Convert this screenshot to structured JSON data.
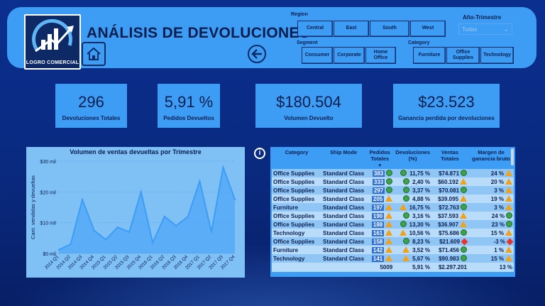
{
  "header": {
    "title": "ANÁLISIS DE DEVOLUCIONES",
    "logo_text": "LOGRO COMERCIAL"
  },
  "slicers": {
    "region": {
      "label": "Region",
      "options": [
        "Central",
        "East",
        "South",
        "West"
      ]
    },
    "segment": {
      "label": "Segment",
      "options": [
        "Consumer",
        "Corporate",
        "Home Office"
      ]
    },
    "category": {
      "label": "Category",
      "options": [
        "Furniture",
        "Office Supplies",
        "Technology"
      ]
    },
    "quarter": {
      "label": "Año-Trimestre",
      "value": "Todas"
    }
  },
  "kpis": [
    {
      "value": "296",
      "label": "Devoluciones Totales"
    },
    {
      "value": "5,91 %",
      "label": "Pedidos Devueltos"
    },
    {
      "value": "$180.504",
      "label": "Volumen Devuelto"
    },
    {
      "value": "$23.523",
      "label": "Ganancia perdida por devoluciones"
    }
  ],
  "chart_data": {
    "type": "area",
    "title": "Volumen de ventas devueltas por Trimestre",
    "ylabel": "Cant. vendidas y devueltas",
    "xlabel": "",
    "ylim": [
      0,
      30000
    ],
    "yticks": [
      "$0 mil",
      "$10 mil",
      "$20 mil",
      "$30 mil"
    ],
    "categories": [
      "2014 Q1",
      "2014 Q2",
      "2014 Q3",
      "2014 Q4",
      "2015 Q1",
      "2015 Q2",
      "2015 Q3",
      "2015 Q4",
      "2016 Q1",
      "2016 Q2",
      "2016 Q3",
      "2016 Q4",
      "2017 Q1",
      "2017 Q2",
      "2017 Q3",
      "2017 Q4"
    ],
    "values": [
      1200,
      3000,
      17500,
      7500,
      4500,
      8500,
      7000,
      20000,
      3500,
      12000,
      9000,
      12000,
      23500,
      7000,
      28000,
      17500
    ],
    "color": "#3d9df5"
  },
  "table": {
    "columns": [
      "Category",
      "Ship Mode",
      "Pedidos Totales",
      "Devoluciones (%)",
      "Ventas Totales",
      "Margen de ganancia bruto"
    ],
    "rows": [
      {
        "category": "Office Supplies",
        "ship": "Standard Class",
        "pedidos": "383",
        "pi": "g",
        "dev": "11,75 %",
        "di": "g",
        "ventas": "$74.871",
        "vi": "g",
        "margen": "24 %",
        "mi": "t"
      },
      {
        "category": "Office Supplies",
        "ship": "Standard Class",
        "pedidos": "333",
        "pi": "g",
        "dev": "2,40 %",
        "di": "g",
        "ventas": "$60.192",
        "vi": "t",
        "margen": "20 %",
        "mi": "t"
      },
      {
        "category": "Office Supplies",
        "ship": "Standard Class",
        "pedidos": "297",
        "pi": "g",
        "dev": "3,37 %",
        "di": "g",
        "ventas": "$70.081",
        "vi": "g",
        "margen": "3 %",
        "mi": "t"
      },
      {
        "category": "Office Supplies",
        "ship": "Standard Class",
        "pedidos": "205",
        "pi": "t",
        "dev": "4,88 %",
        "di": "g",
        "ventas": "$39.095",
        "vi": "t",
        "margen": "19 %",
        "mi": "t"
      },
      {
        "category": "Furniture",
        "ship": "Standard Class",
        "pedidos": "197",
        "pi": "t",
        "dev": "16,75 %",
        "di": "t",
        "ventas": "$72.763",
        "vi": "g",
        "margen": "3 %",
        "mi": "t"
      },
      {
        "category": "Office Supplies",
        "ship": "Standard Class",
        "pedidos": "190",
        "pi": "t",
        "dev": "3,16 %",
        "di": "g",
        "ventas": "$37.593",
        "vi": "t",
        "margen": "24 %",
        "mi": "g"
      },
      {
        "category": "Office Supplies",
        "ship": "Standard Class",
        "pedidos": "188",
        "pi": "t",
        "dev": "13,30 %",
        "di": "g",
        "ventas": "$36.907",
        "vi": "t",
        "margen": "23 %",
        "mi": "g"
      },
      {
        "category": "Technology",
        "ship": "Standard Class",
        "pedidos": "161",
        "pi": "t",
        "dev": "10,56 %",
        "di": "t",
        "ventas": "$75.686",
        "vi": "g",
        "margen": "15 %",
        "mi": "t"
      },
      {
        "category": "Office Supplies",
        "ship": "Standard Class",
        "pedidos": "158",
        "pi": "t",
        "dev": "8,23 %",
        "di": "g",
        "ventas": "$21.609",
        "vi": "r",
        "margen": "-3 %",
        "mi": "r"
      },
      {
        "category": "Furniture",
        "ship": "Standard Class",
        "pedidos": "142",
        "pi": "t",
        "dev": "3,52 %",
        "di": "t",
        "ventas": "$71.456",
        "vi": "g",
        "margen": "1 %",
        "mi": "t"
      },
      {
        "category": "Technology",
        "ship": "Standard Class",
        "pedidos": "141",
        "pi": "t",
        "dev": "5,67 %",
        "di": "t",
        "ventas": "$90.983",
        "vi": "g",
        "margen": "15 %",
        "mi": "t"
      }
    ],
    "total": {
      "pedidos": "5009",
      "dev": "5,91 %",
      "ventas": "$2.297.201",
      "margen": "13 %"
    }
  }
}
